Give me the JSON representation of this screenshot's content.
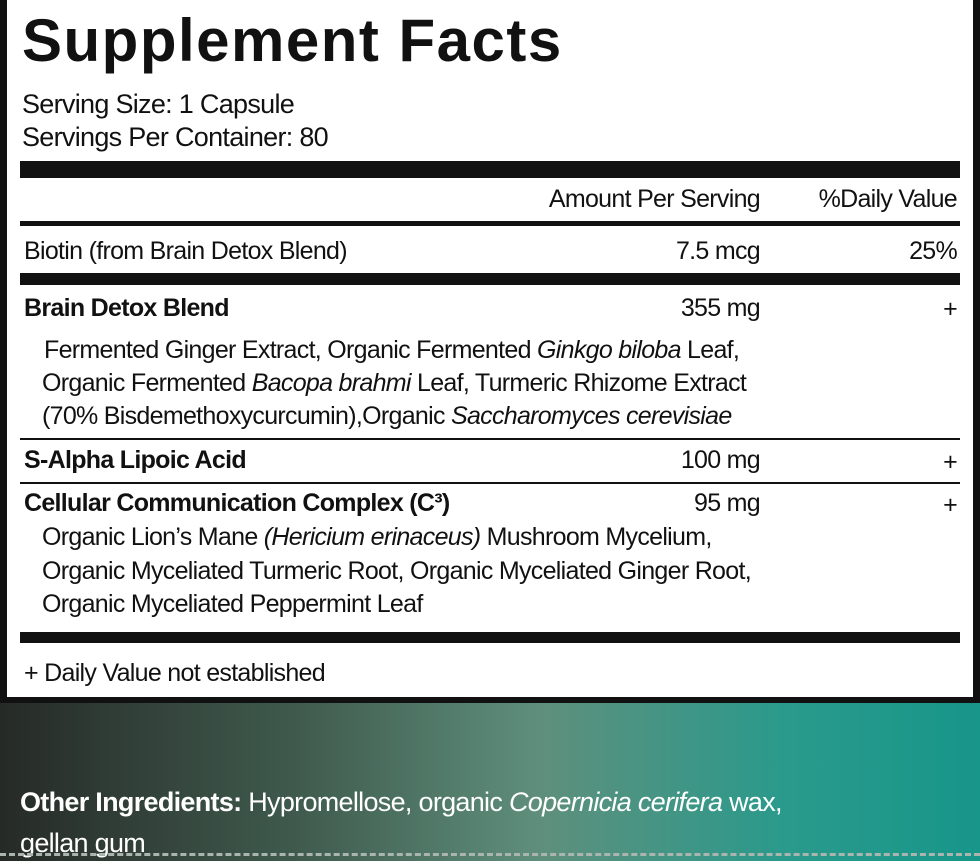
{
  "title": "Supplement Facts",
  "serving_size": "Serving Size: 1 Capsule",
  "servings_per_container": "Servings Per Container: 80",
  "header": {
    "amount": "Amount Per Serving",
    "daily_value": "%Daily Value"
  },
  "rows": [
    {
      "name": "Biotin (from Brain Detox Blend)",
      "amount": "7.5 mcg",
      "daily_value": "25%"
    },
    {
      "name": "Brain Detox Blend",
      "amount": "355 mg",
      "daily_value": "+",
      "ingredients": [
        [
          "Fermented Ginger Extract, Organic Fermented ",
          "Ginkgo biloba",
          " Leaf,"
        ],
        [
          "Organic Fermented ",
          "Bacopa brahmi",
          " Leaf, Turmeric Rhizome Extract"
        ],
        [
          "(70% Bisdemethoxycurcumin),Organic ",
          "Saccharomyces cerevisiae"
        ]
      ]
    },
    {
      "name": "S-Alpha Lipoic Acid",
      "amount": "100 mg",
      "daily_value": "+"
    },
    {
      "name": "Cellular Communication Complex (C³)",
      "amount": "95 mg",
      "daily_value": "+",
      "ingredients": [
        [
          "Organic Lion’s Mane ",
          "(Hericium erinaceus)",
          " Mushroom Mycelium,"
        ],
        [
          "Organic Myceliated Turmeric Root, Organic Myceliated Ginger Root,"
        ],
        [
          "Organic Myceliated Peppermint Leaf"
        ]
      ]
    }
  ],
  "footnote": "+ Daily Value not established",
  "other_ingredients": {
    "label": "Other Ingredients:",
    "lines": [
      [
        " Hypromellose, organic ",
        "Copernicia cerifera",
        " wax,"
      ],
      [
        "gellan gum"
      ]
    ]
  }
}
